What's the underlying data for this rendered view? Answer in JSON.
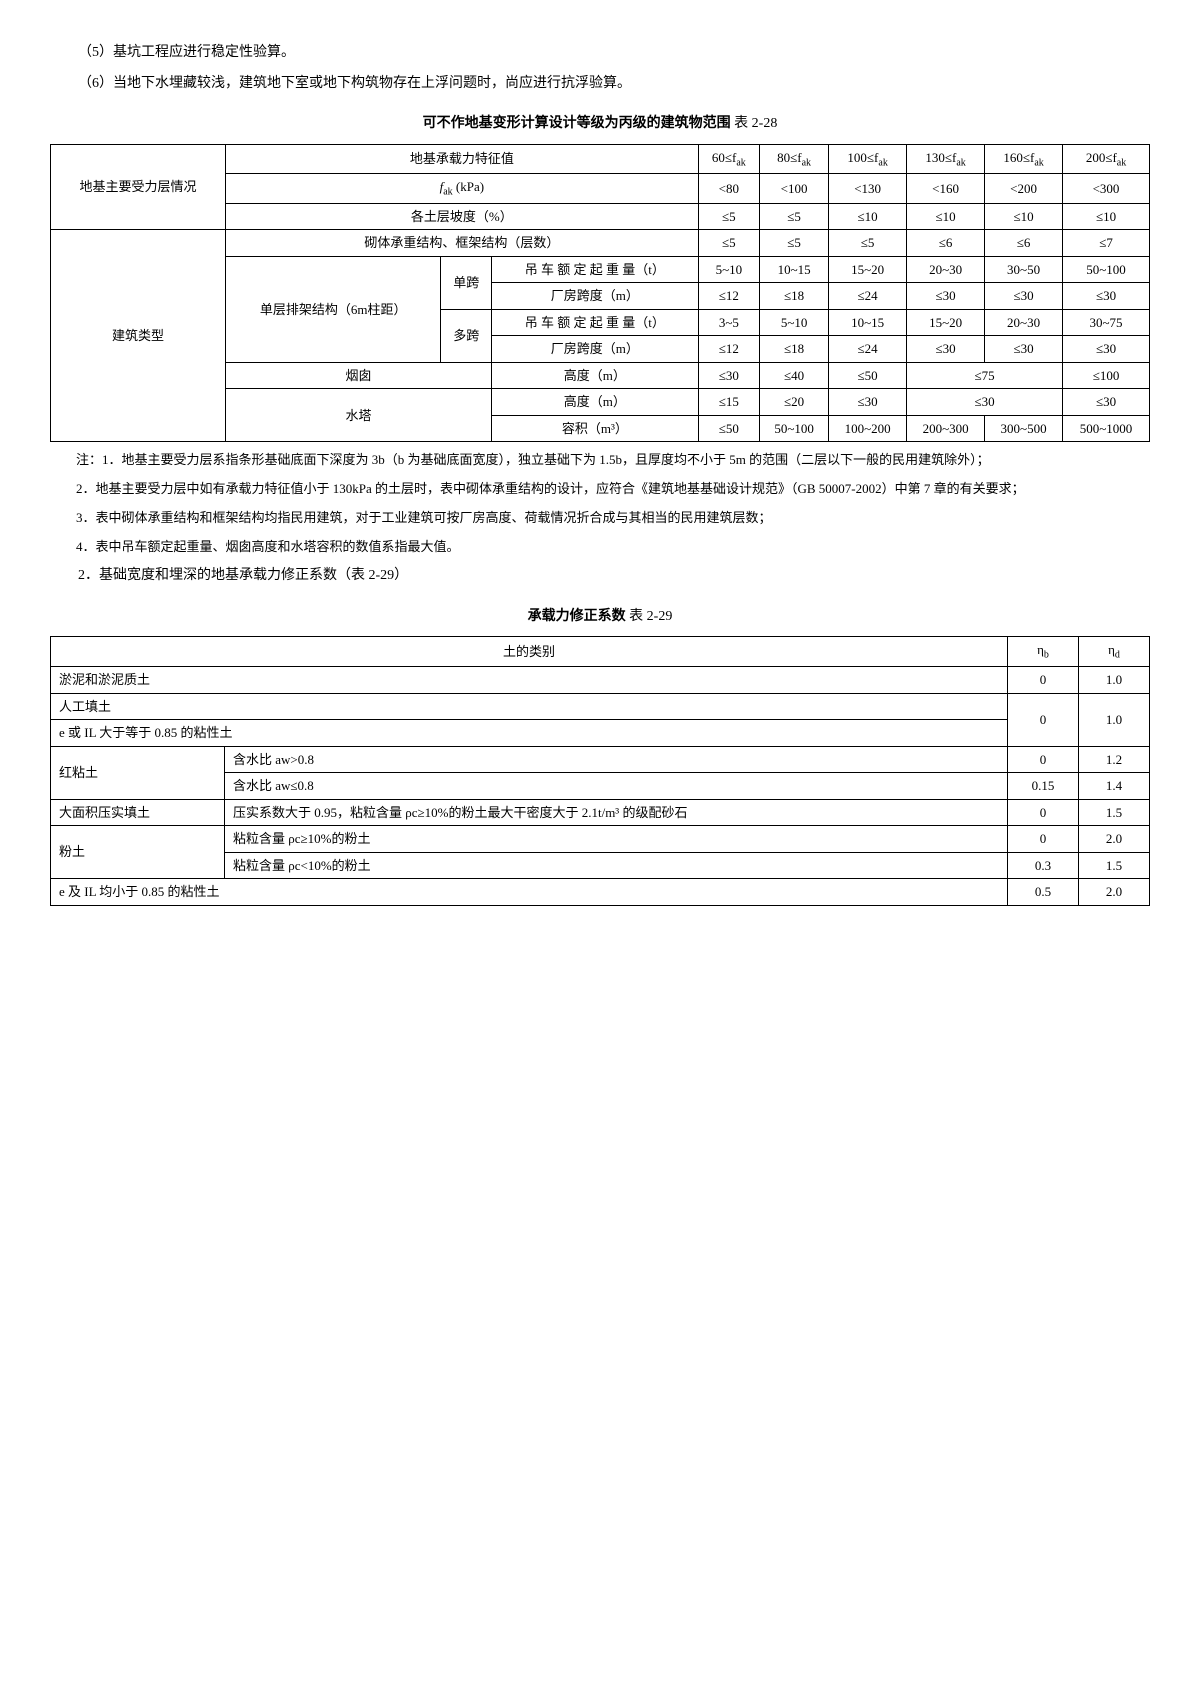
{
  "p5": "（5）基坑工程应进行稳定性验算。",
  "p6": "（6）当地下水埋藏较浅，建筑地下室或地下构筑物存在上浮问题时，尚应进行抗浮验算。",
  "caption1_bold": "可不作地基变形计算设计等级为丙级的建筑物范围",
  "caption1_thin": " 表 2-28",
  "t1": {
    "r0": [
      "地基主要受力层情况",
      "地基承载力特征值",
      "60≤f",
      "80≤f",
      "100≤f",
      "130≤f",
      "160≤f",
      "200≤f"
    ],
    "r0sub": "ak",
    "r1_b": [
      "f",
      "<80",
      "<100",
      "<130",
      "<160",
      "<200",
      "<300"
    ],
    "r1_a": " (kPa)",
    "r2": [
      "各土层坡度（%）",
      "≤5",
      "≤5",
      "≤10",
      "≤10",
      "≤10",
      "≤10"
    ],
    "r3": [
      "建筑类型",
      "砌体承重结构、框架结构（层数）",
      "≤5",
      "≤5",
      "≤5",
      "≤6",
      "≤6",
      "≤7"
    ],
    "r4a": [
      "单层排架结构（6m柱距）",
      "单跨",
      "吊 车 额 定 起 重 量（t）",
      "5~10",
      "10~15",
      "15~20",
      "20~30",
      "30~50",
      "50~100"
    ],
    "r4b": [
      "厂房跨度（m）",
      "≤12",
      "≤18",
      "≤24",
      "≤30",
      "≤30",
      "≤30"
    ],
    "r4c0": "多跨",
    "r4c": [
      "吊 车 额 定 起 重 量（t）",
      "3~5",
      "5~10",
      "10~15",
      "15~20",
      "20~30",
      "30~75"
    ],
    "r4d": [
      "厂房跨度（m）",
      "≤12",
      "≤18",
      "≤24",
      "≤30",
      "≤30",
      "≤30"
    ],
    "r5": [
      "烟囱",
      "高度（m）",
      "≤30",
      "≤40",
      "≤50",
      "≤75",
      "≤100"
    ],
    "r6": [
      "水塔",
      "高度（m）",
      "≤15",
      "≤20",
      "≤30",
      "≤30",
      "≤30"
    ],
    "r7": [
      "容积（m³）",
      "≤50",
      "50~100",
      "100~200",
      "200~300",
      "300~500",
      "500~1000"
    ]
  },
  "notes1": [
    "注：1．地基主要受力层系指条形基础底面下深度为 3b（b 为基础底面宽度），独立基础下为 1.5b，且厚度均不小于 5m 的范围（二层以下一般的民用建筑除外）；",
    "2．地基主要受力层中如有承载力特征值小于 130kPa 的土层时，表中砌体承重结构的设计，应符合《建筑地基基础设计规范》（GB 50007-2002）中第 7 章的有关要求；",
    "3．表中砌体承重结构和框架结构均指民用建筑，对于工业建筑可按厂房高度、荷载情况折合成与其相当的民用建筑层数；",
    "4．表中吊车额定起重量、烟囱高度和水塔容积的数值系指最大值。"
  ],
  "p_base": "2．基础宽度和埋深的地基承载力修正系数（表 2-29）",
  "caption2_bold": "承载力修正系数",
  "caption2_thin": " 表 2-29",
  "t2": {
    "h": [
      "土的类别",
      "η",
      "η"
    ],
    "hsub": [
      "b",
      "d"
    ],
    "rows": [
      {
        "c0": "淤泥和淤泥质土",
        "c1": "",
        "nb": "0",
        "nd": "1.0",
        "span": 2
      },
      {
        "c0": "人工填土",
        "c1": "",
        "nb": "0",
        "nd": "1.0",
        "span": 2,
        "rowspan": 2,
        "merge_below": true
      },
      {
        "c0": "e 或 IL 大于等于 0.85 的粘性土",
        "c1": "",
        "nb": "",
        "nd": "",
        "span": 2,
        "no_nums": true
      },
      {
        "c0": "红粘土",
        "c1": "含水比 aw>0.8",
        "nb": "0",
        "nd": "1.2"
      },
      {
        "c0": "",
        "c1": "含水比 aw≤0.8",
        "nb": "0.15",
        "nd": "1.4"
      },
      {
        "c0": "大面积压实填土",
        "c1": "压实系数大于 0.95，粘粒含量 ρc≥10%的粉土最大干密度大于 2.1t/m³ 的级配砂石",
        "nb": "0",
        "nd": "1.5"
      },
      {
        "c0": "粉土",
        "c1": "粘粒含量 ρc≥10%的粉土",
        "nb": "0",
        "nd": "2.0"
      },
      {
        "c0": "",
        "c1": "粘粒含量 ρc<10%的粉土",
        "nb": "0.3",
        "nd": "1.5"
      },
      {
        "c0": "e 及 IL 均小于 0.85 的粘性土",
        "c1": "",
        "nb": "0.5",
        "nd": "2.0",
        "span": 2
      }
    ]
  }
}
